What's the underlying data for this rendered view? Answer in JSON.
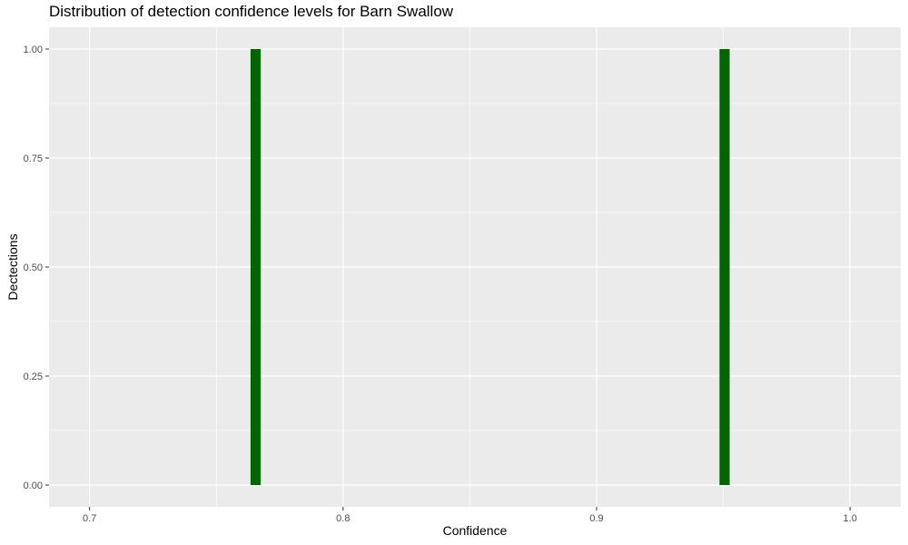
{
  "chart_data": {
    "type": "bar",
    "title": "Distribution of detection confidence levels for Barn Swallow",
    "xlabel": "Confidence",
    "ylabel": "Dectections",
    "xlim": [
      0.684,
      1.02
    ],
    "ylim": [
      -0.05,
      1.05
    ],
    "x_ticks": [
      0.7,
      0.8,
      0.9,
      1.0
    ],
    "x_tick_labels": [
      "0.7",
      "0.8",
      "0.9",
      "1.0"
    ],
    "y_ticks": [
      0.0,
      0.25,
      0.5,
      0.75,
      1.0
    ],
    "y_tick_labels": [
      "0.00",
      "0.25",
      "0.50",
      "0.75",
      "1.00"
    ],
    "bin_width": 0.004,
    "series": [
      {
        "x": [
          0.7655,
          0.9505
        ],
        "values": [
          1,
          1
        ]
      }
    ],
    "grid": true,
    "legend": "none",
    "colors": {
      "bar": "#006400",
      "panel": "#EBEBEB",
      "grid": "#FFFFFF",
      "tick_text": "#4D4D4D",
      "tick_mark": "#333333"
    }
  }
}
